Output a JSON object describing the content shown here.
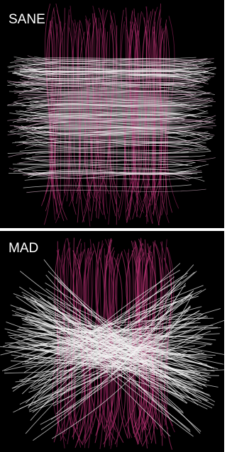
{
  "panels": [
    {
      "label": "SANE"
    },
    {
      "label": "MAD"
    }
  ]
}
